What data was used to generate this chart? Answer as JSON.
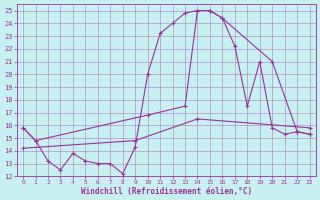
{
  "xlabel": "Windchill (Refroidissement éolien,°C)",
  "bg_color": "#c8f0f0",
  "line_color": "#993399",
  "xlim": [
    -0.5,
    23.5
  ],
  "ylim": [
    12,
    25.5
  ],
  "yticks": [
    12,
    13,
    14,
    15,
    16,
    17,
    18,
    19,
    20,
    21,
    22,
    23,
    24,
    25
  ],
  "xticks": [
    0,
    1,
    2,
    3,
    4,
    5,
    6,
    7,
    8,
    9,
    10,
    11,
    12,
    13,
    14,
    15,
    16,
    17,
    18,
    19,
    20,
    21,
    22,
    23
  ],
  "line1_x": [
    0,
    1,
    2,
    3,
    4,
    5,
    6,
    7,
    8,
    9,
    10,
    11,
    12,
    13,
    14,
    15,
    16,
    17,
    18,
    19,
    20,
    21,
    22,
    23
  ],
  "line1_y": [
    15.8,
    14.8,
    13.2,
    12.5,
    13.8,
    13.2,
    13.0,
    13.0,
    12.2,
    14.3,
    20.0,
    23.2,
    24.0,
    24.8,
    25.0,
    25.0,
    24.4,
    22.2,
    17.5,
    21.0,
    15.8,
    15.3,
    15.5,
    15.3
  ],
  "line2_x": [
    0,
    1,
    10,
    13,
    14,
    15,
    16,
    20,
    22,
    23
  ],
  "line2_y": [
    15.8,
    14.8,
    16.8,
    17.5,
    25.0,
    25.0,
    24.4,
    21.0,
    15.5,
    15.3
  ],
  "line3_x": [
    0,
    9,
    14,
    23
  ],
  "line3_y": [
    14.2,
    14.8,
    16.5,
    15.8
  ],
  "marker": "+"
}
